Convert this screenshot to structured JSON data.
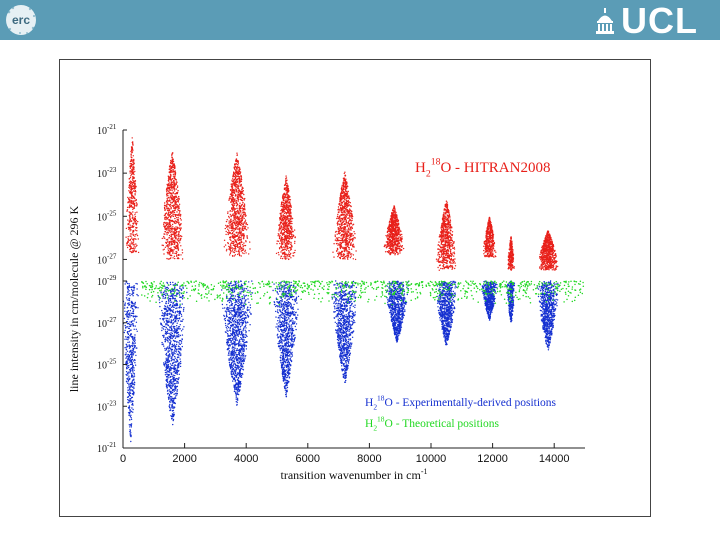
{
  "header": {
    "left_logo": "erc",
    "right_logo": "UCL"
  },
  "chart_data": {
    "type": "scatter",
    "title": "",
    "xlabel": "transition wavenumber in cm",
    "xlabel_superscript": "-1",
    "ylabel": "line intensity in cm/molecule @ 296 K",
    "xlim": [
      0,
      15000
    ],
    "x_ticks": [
      0,
      2000,
      4000,
      6000,
      8000,
      10000,
      12000,
      14000
    ],
    "upper_panel": {
      "scale": "log",
      "ylim": [
        1e-28,
        1e-21
      ],
      "tick_exponents": [
        -21,
        -23,
        -25,
        -27
      ]
    },
    "lower_panel": {
      "scale": "log, inverted",
      "ylim": [
        1e-29,
        1e-21
      ],
      "tick_exponents": [
        -29,
        -27,
        -25,
        -23,
        -21
      ]
    },
    "tick_base": "10",
    "series": [
      {
        "name": "H2 18O - HITRAN2008",
        "panel": "upper",
        "color": "#e8201a",
        "bands": [
          {
            "center": 300,
            "width": 450,
            "top": -21.3,
            "bottom": -26.7
          },
          {
            "center": 1600,
            "width": 800,
            "top": -21.9,
            "bottom": -27.0
          },
          {
            "center": 3700,
            "width": 900,
            "top": -22.0,
            "bottom": -26.9
          },
          {
            "center": 5300,
            "width": 700,
            "top": -23.1,
            "bottom": -27.0
          },
          {
            "center": 7200,
            "width": 800,
            "top": -22.9,
            "bottom": -27.0
          },
          {
            "center": 8800,
            "width": 700,
            "top": -24.5,
            "bottom": -26.8
          },
          {
            "center": 10500,
            "width": 700,
            "top": -24.2,
            "bottom": -27.5
          },
          {
            "center": 11900,
            "width": 450,
            "top": -25.0,
            "bottom": -26.9
          },
          {
            "center": 12600,
            "width": 250,
            "top": -25.9,
            "bottom": -27.5
          },
          {
            "center": 13800,
            "width": 700,
            "top": -25.6,
            "bottom": -27.5
          }
        ]
      },
      {
        "name": "H2 18O - Experimentally-derived positions",
        "panel": "lower",
        "color": "#1530d0",
        "bands": [
          {
            "center": 250,
            "width": 550,
            "top": -21.2
          },
          {
            "center": 1600,
            "width": 1000,
            "top": -21.9
          },
          {
            "center": 3700,
            "width": 1100,
            "top": -23.0
          },
          {
            "center": 5300,
            "width": 900,
            "top": -23.4
          },
          {
            "center": 7200,
            "width": 900,
            "top": -24.0
          },
          {
            "center": 8900,
            "width": 800,
            "top": -26.0
          },
          {
            "center": 10500,
            "width": 750,
            "top": -25.8
          },
          {
            "center": 11900,
            "width": 550,
            "top": -27.1
          },
          {
            "center": 12600,
            "width": 300,
            "top": -26.9
          },
          {
            "center": 13800,
            "width": 750,
            "top": -25.6
          }
        ]
      },
      {
        "name": "H2 18O - Theoretical positions",
        "panel": "lower",
        "color": "#22d822",
        "x_range": [
          600,
          15000
        ],
        "depth": -27.8
      }
    ],
    "legend": {
      "placement": "in-chart",
      "upper": {
        "prefix": "H",
        "sub": "2",
        "sup": "18",
        "suffix": "O - HITRAN2008"
      },
      "lower_blue": {
        "prefix": "H",
        "sub": "2",
        "sup": "18",
        "suffix": "O - Experimentally-derived positions"
      },
      "lower_green": {
        "prefix": "H",
        "sub": "2",
        "sup": "18",
        "suffix": "O - Theoretical positions"
      }
    }
  }
}
